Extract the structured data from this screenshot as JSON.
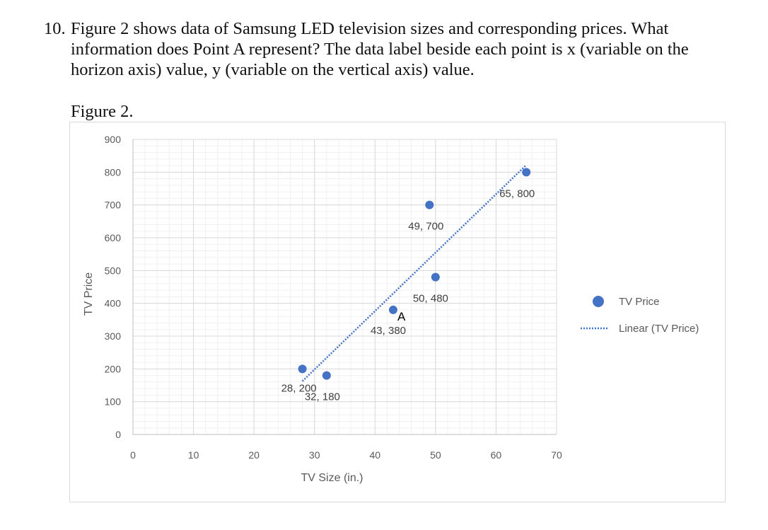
{
  "question": {
    "number": "10.",
    "lines": [
      "Figure 2 shows data of Samsung LED television sizes and corresponding prices. What",
      "information does Point A represent? The data label beside each point is x (variable on the",
      "horizon axis) value, y (variable on the vertical axis) value."
    ]
  },
  "figure_caption": "Figure 2.",
  "chart_data": {
    "type": "scatter",
    "title": "",
    "xlabel": "TV Size (in.)",
    "ylabel": "TV Price",
    "xlim": [
      0,
      70
    ],
    "ylim": [
      0,
      900
    ],
    "xticks": [
      0,
      10,
      20,
      30,
      40,
      50,
      60,
      70
    ],
    "yticks": [
      0,
      100,
      200,
      300,
      400,
      500,
      600,
      700,
      800,
      900
    ],
    "grid": true,
    "legend_position": "right",
    "series": [
      {
        "name": "TV Price",
        "color": "#4472C4",
        "points": [
          {
            "x": 28,
            "y": 200,
            "label": "28, 200"
          },
          {
            "x": 32,
            "y": 180,
            "label": "32, 180"
          },
          {
            "x": 43,
            "y": 380,
            "label": "43, 380"
          },
          {
            "x": 49,
            "y": 700,
            "label": "49, 700"
          },
          {
            "x": 50,
            "y": 480,
            "label": "50, 480"
          },
          {
            "x": 65,
            "y": 800,
            "label": "65, 800"
          }
        ]
      }
    ],
    "trendline": {
      "name": "Linear (TV Price)",
      "type": "linear",
      "style": "dotted",
      "color": "#4472C4"
    },
    "annotations": [
      {
        "text": "A",
        "x": 43,
        "y": 380
      }
    ]
  }
}
